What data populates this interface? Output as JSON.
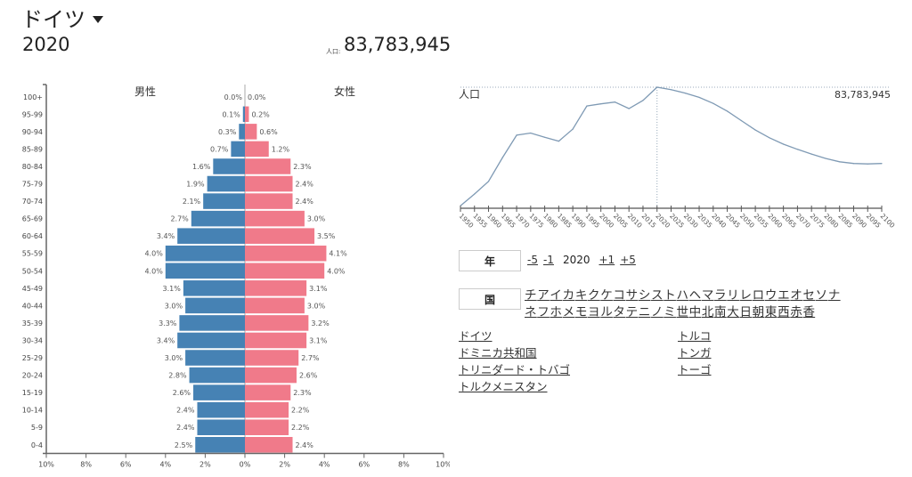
{
  "header": {
    "country": "ドイツ",
    "year": "2020",
    "population_label": "人口:",
    "population": "83,783,945"
  },
  "colors": {
    "male": "#4682b4",
    "female": "#f07a8a",
    "line": "#7f9ab4"
  },
  "chart_data": [
    {
      "type": "bar",
      "title": "",
      "male_label": "男性",
      "female_label": "女性",
      "categories": [
        "100+",
        "95-99",
        "90-94",
        "85-89",
        "80-84",
        "75-79",
        "70-74",
        "65-69",
        "60-64",
        "55-59",
        "50-54",
        "45-49",
        "40-44",
        "35-39",
        "30-34",
        "25-29",
        "20-24",
        "15-19",
        "10-14",
        "5-9",
        "0-4"
      ],
      "series": [
        {
          "name": "男性",
          "values": [
            0.0,
            0.1,
            0.3,
            0.7,
            1.6,
            1.9,
            2.1,
            2.7,
            3.4,
            4.0,
            4.0,
            3.1,
            3.0,
            3.3,
            3.4,
            3.0,
            2.8,
            2.6,
            2.4,
            2.4,
            2.5
          ],
          "labels": [
            "0.0%",
            "0.1%",
            "0.3%",
            "0.7%",
            "1.6%",
            "1.9%",
            "2.1%",
            "2.7%",
            "3.4%",
            "4.0%",
            "4.0%",
            "3.1%",
            "3.0%",
            "3.3%",
            "3.4%",
            "3.0%",
            "2.8%",
            "2.6%",
            "2.4%",
            "2.4%",
            "2.5%"
          ]
        },
        {
          "name": "女性",
          "values": [
            0.0,
            0.2,
            0.6,
            1.2,
            2.3,
            2.4,
            2.4,
            3.0,
            3.5,
            4.1,
            4.0,
            3.1,
            3.0,
            3.2,
            3.1,
            2.7,
            2.6,
            2.3,
            2.2,
            2.2,
            2.4
          ],
          "labels": [
            "0.0%",
            "0.2%",
            "0.6%",
            "1.2%",
            "2.3%",
            "2.4%",
            "2.4%",
            "3.0%",
            "3.5%",
            "4.1%",
            "4.0%",
            "3.1%",
            "3.0%",
            "3.2%",
            "3.1%",
            "2.7%",
            "2.6%",
            "2.3%",
            "2.2%",
            "2.2%",
            "2.4%"
          ]
        }
      ],
      "xlim": [
        -10,
        10
      ],
      "xticks": [
        "10%",
        "8%",
        "6%",
        "4%",
        "2%",
        "0%",
        "2%",
        "4%",
        "6%",
        "8%",
        "10%"
      ],
      "xtick_values": [
        -10,
        -8,
        -6,
        -4,
        -2,
        0,
        2,
        4,
        6,
        8,
        10
      ]
    },
    {
      "type": "line",
      "ylabel": "人口",
      "current_value_label": "83,783,945",
      "current_year": 2020,
      "x": [
        1950,
        1955,
        1960,
        1965,
        1970,
        1975,
        1980,
        1985,
        1990,
        1995,
        2000,
        2005,
        2010,
        2015,
        2020,
        2025,
        2030,
        2035,
        2040,
        2045,
        2050,
        2055,
        2060,
        2065,
        2070,
        2075,
        2080,
        2085,
        2090,
        2095,
        2100
      ],
      "xtick_labels": [
        "1950",
        "1955",
        "1960",
        "1965",
        "1970",
        "1975",
        "1980",
        "1985",
        "1990",
        "1995",
        "2000",
        "2005",
        "2010",
        "2015",
        "2020",
        "2025",
        "2030",
        "2035",
        "2040",
        "2045",
        "2050",
        "2055",
        "2060",
        "2065",
        "2070",
        "2075",
        "2080",
        "2085",
        "2090",
        "2095",
        "2100"
      ],
      "values": [
        69970000,
        71350000,
        72820000,
        75600000,
        78200000,
        78450000,
        77950000,
        77500000,
        78900000,
        81600000,
        81850000,
        82050000,
        81300000,
        82250000,
        83783945,
        83500000,
        83100000,
        82600000,
        81900000,
        81000000,
        79900000,
        78800000,
        77900000,
        77150000,
        76550000,
        76000000,
        75500000,
        75100000,
        74900000,
        74850000,
        74900000
      ],
      "ylim": [
        69900000,
        83783945
      ]
    }
  ],
  "controls": {
    "year_label": "年",
    "year_links": [
      "-5",
      "-1"
    ],
    "year_value": "2020",
    "year_links_after": [
      "+1",
      "+5"
    ],
    "country_label": "国",
    "kana_row1": [
      "チ",
      "ア",
      "イ",
      "カ",
      "キ",
      "ク",
      "ケ",
      "コ",
      "サ",
      "シ",
      "ス",
      "ト",
      "ハ",
      "ヘ",
      "マ",
      "ラ",
      "リ",
      "レ",
      "ロ",
      "ウ",
      "エ",
      "オ",
      "セ",
      "ソ",
      "ナ"
    ],
    "kana_row2": [
      "ネ",
      "フ",
      "ホ",
      "メ",
      "モ",
      "ヨ",
      "ル",
      "タ",
      "テ",
      "ニ",
      "ノ",
      "ミ",
      "世",
      "中",
      "北",
      "南",
      "大",
      "日",
      "朝",
      "東",
      "西",
      "赤",
      "香"
    ]
  },
  "countries": {
    "col1": [
      "ドイツ",
      "ドミニカ共和国",
      "トリニダード・トバゴ",
      "トルクメニスタン"
    ],
    "col2": [
      "トルコ",
      "トンガ",
      "トーゴ"
    ]
  }
}
